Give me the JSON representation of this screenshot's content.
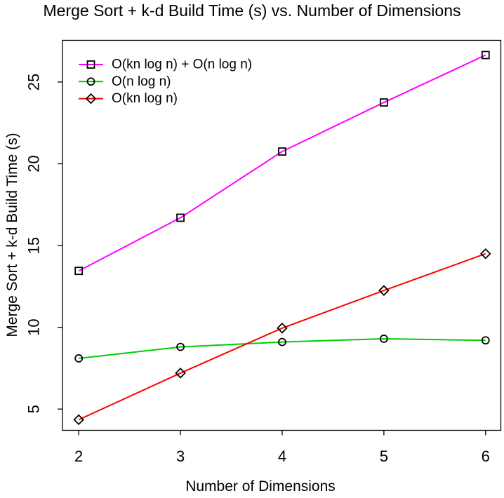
{
  "chart_data": {
    "type": "line",
    "title": "Merge Sort + k-d Build Time (s) vs. Number of Dimensions",
    "xlabel": "Number of Dimensions",
    "ylabel": "Merge Sort + k-d Build Time (s)",
    "x": [
      2,
      3,
      4,
      5,
      6
    ],
    "series": [
      {
        "name": "O(kn log n) + O(n log n)",
        "color": "#FF00FF",
        "marker": "square",
        "values": [
          13.45,
          16.7,
          20.75,
          23.75,
          26.65
        ]
      },
      {
        "name": "O(n log n)",
        "color": "#00CD00",
        "marker": "circle",
        "values": [
          8.1,
          8.8,
          9.1,
          9.3,
          9.2
        ]
      },
      {
        "name": "O(kn log n)",
        "color": "#FF0000",
        "marker": "diamond",
        "values": [
          4.35,
          7.2,
          9.95,
          12.25,
          14.5
        ]
      }
    ],
    "xticks": [
      2,
      3,
      4,
      5,
      6
    ],
    "yticks": [
      5,
      10,
      15,
      20,
      25
    ],
    "xlim": [
      1.84,
      6.15
    ],
    "ylim": [
      3.7,
      27.55
    ],
    "legend_position": "topleft",
    "grid": false,
    "axis_color": "#000000",
    "marker_stroke": "#000000",
    "background": "#FFFFFF"
  }
}
